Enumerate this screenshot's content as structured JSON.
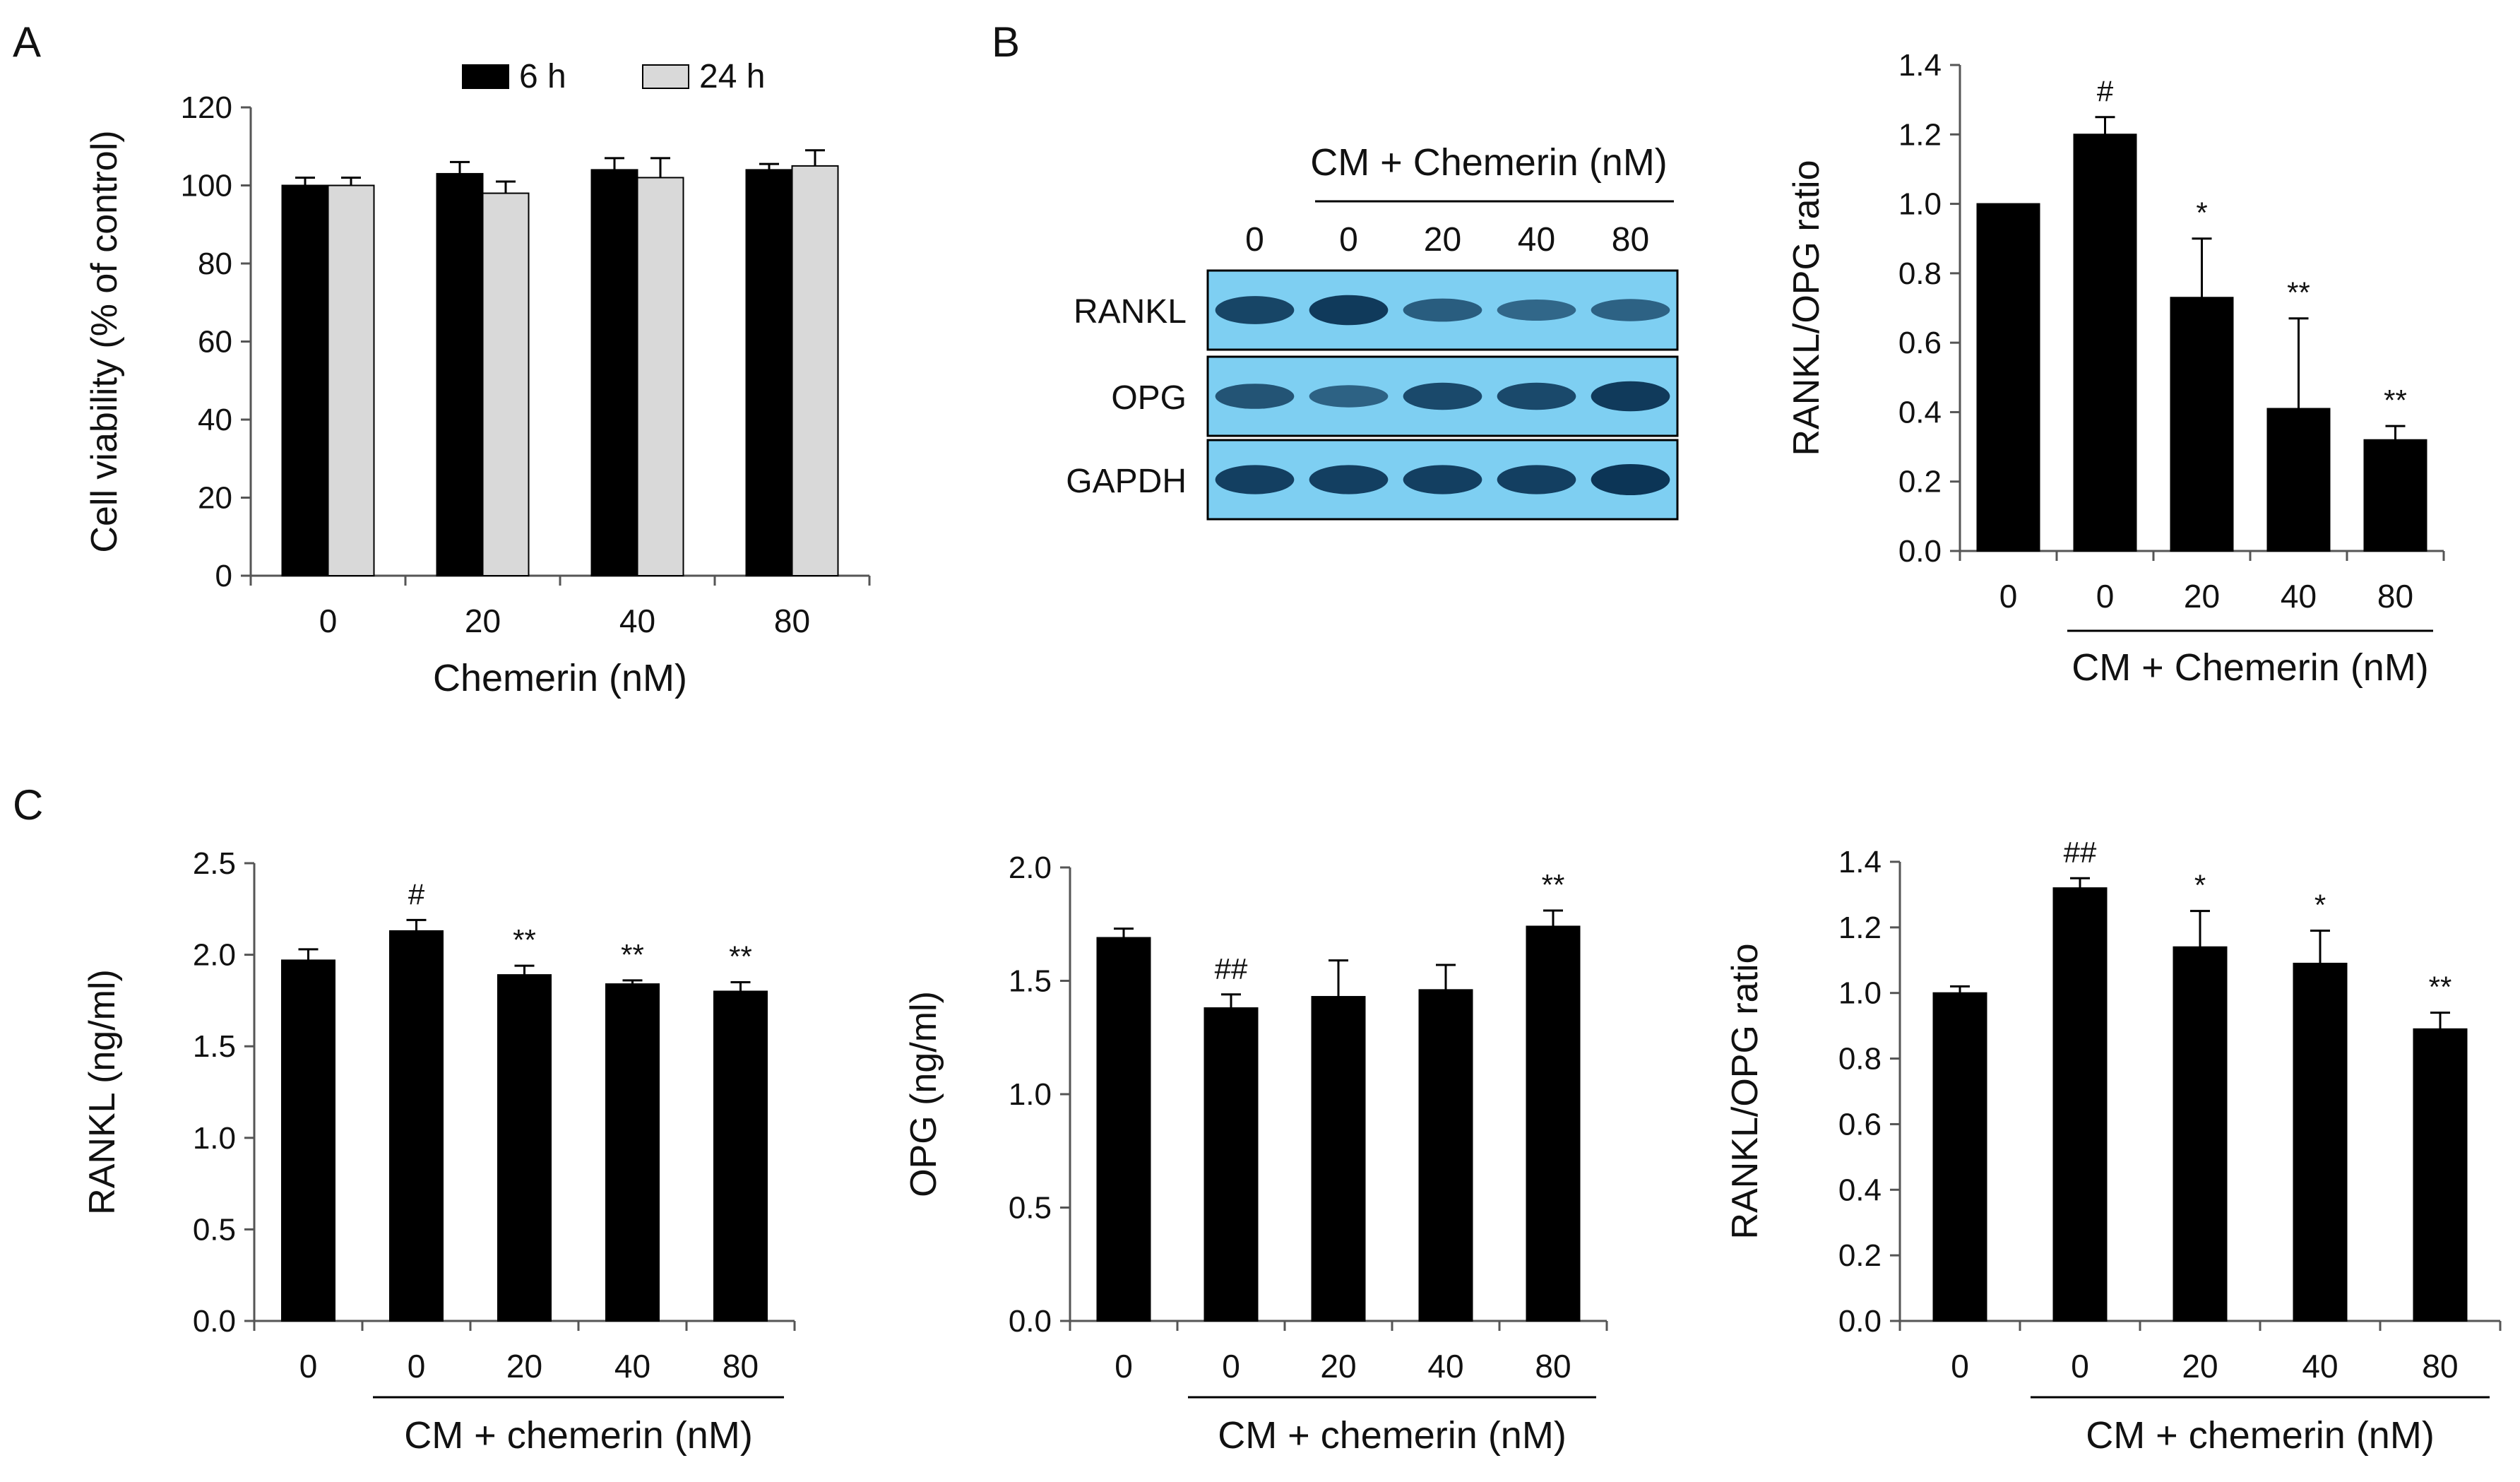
{
  "panel_letters": {
    "a": "A",
    "b": "B",
    "c": "C"
  },
  "colors": {
    "bar_dark": "#000000",
    "bar_light": "#d9d9d9",
    "blot_bg": "#7ecff2",
    "blot_band": "#0c3556"
  },
  "blot": {
    "header": "CM + Chemerin (nM)",
    "lanes": [
      "0",
      "0",
      "20",
      "40",
      "80"
    ],
    "rows": [
      {
        "label": "RANKL",
        "intensity": [
          0.85,
          0.95,
          0.6,
          0.5,
          0.55
        ]
      },
      {
        "label": "OPG",
        "intensity": [
          0.7,
          0.55,
          0.8,
          0.8,
          0.95
        ]
      },
      {
        "label": "GAPDH",
        "intensity": [
          0.9,
          0.9,
          0.9,
          0.9,
          1.0
        ]
      }
    ]
  },
  "chart_data": [
    {
      "id": "A",
      "type": "bar",
      "ylabel": "Cell viability (% of control)",
      "xlabel": "Chemerin (nM)",
      "categories": [
        "0",
        "20",
        "40",
        "80"
      ],
      "ylim": [
        0,
        120
      ],
      "yticks": [
        "0",
        "20",
        "40",
        "60",
        "80",
        "100",
        "120"
      ],
      "legend": "top",
      "series": [
        {
          "name": "6 h",
          "color": "#000000",
          "values": [
            100,
            103,
            104,
            104
          ],
          "errors": [
            2,
            3,
            3,
            1.5
          ]
        },
        {
          "name": "24 h",
          "color": "#d9d9d9",
          "values": [
            100,
            98,
            102,
            105
          ],
          "errors": [
            2,
            3,
            5,
            4
          ]
        }
      ],
      "annotations": [
        "",
        "",
        "",
        ""
      ],
      "bracket_label": "",
      "bracket_from": 0
    },
    {
      "id": "B",
      "type": "bar",
      "ylabel": "RANKL/OPG ratio",
      "xlabel": "",
      "categories": [
        "0",
        "0",
        "20",
        "40",
        "80"
      ],
      "ylim": [
        0,
        1.4
      ],
      "yticks": [
        "0.0",
        "0.2",
        "0.4",
        "0.6",
        "0.8",
        "1.0",
        "1.2",
        "1.4"
      ],
      "series": [
        {
          "color": "#000000",
          "values": [
            1.0,
            1.2,
            0.73,
            0.41,
            0.32
          ],
          "errors": [
            0,
            0.05,
            0.17,
            0.26,
            0.04
          ]
        }
      ],
      "annotations": [
        "",
        "#",
        "*",
        "**",
        "**"
      ],
      "bracket_label": "CM + Chemerin (nM)",
      "bracket_from": 1
    },
    {
      "id": "C1",
      "type": "bar",
      "ylabel": "RANKL (ng/ml)",
      "xlabel": "",
      "categories": [
        "0",
        "0",
        "20",
        "40",
        "80"
      ],
      "ylim": [
        0,
        2.5
      ],
      "yticks": [
        "0.0",
        "0.5",
        "1.0",
        "1.5",
        "2.0",
        "2.5"
      ],
      "series": [
        {
          "color": "#000000",
          "values": [
            1.97,
            2.13,
            1.89,
            1.84,
            1.8
          ],
          "errors": [
            0.06,
            0.06,
            0.05,
            0.02,
            0.05
          ]
        }
      ],
      "annotations": [
        "",
        "#",
        "**",
        "**",
        "**"
      ],
      "bracket_label": "CM + chemerin (nM)",
      "bracket_from": 1
    },
    {
      "id": "C2",
      "type": "bar",
      "ylabel": "OPG (ng/ml)",
      "xlabel": "",
      "categories": [
        "0",
        "0",
        "20",
        "40",
        "80"
      ],
      "ylim": [
        0,
        2.0
      ],
      "yticks": [
        "0.0",
        "0.5",
        "1.0",
        "1.5",
        "2.0"
      ],
      "series": [
        {
          "color": "#000000",
          "values": [
            1.69,
            1.38,
            1.43,
            1.46,
            1.74
          ],
          "errors": [
            0.04,
            0.06,
            0.16,
            0.11,
            0.07
          ]
        }
      ],
      "annotations": [
        "",
        "##",
        "",
        "",
        "**"
      ],
      "bracket_label": "CM + chemerin (nM)",
      "bracket_from": 1
    },
    {
      "id": "C3",
      "type": "bar",
      "ylabel": "RANKL/OPG ratio",
      "xlabel": "",
      "categories": [
        "0",
        "0",
        "20",
        "40",
        "80"
      ],
      "ylim": [
        0,
        1.4
      ],
      "yticks": [
        "0.0",
        "0.2",
        "0.4",
        "0.6",
        "0.8",
        "1.0",
        "1.2",
        "1.4"
      ],
      "series": [
        {
          "color": "#000000",
          "values": [
            1.0,
            1.32,
            1.14,
            1.09,
            0.89
          ],
          "errors": [
            0.02,
            0.03,
            0.11,
            0.1,
            0.05
          ]
        }
      ],
      "annotations": [
        "",
        "##",
        "*",
        "*",
        "**"
      ],
      "bracket_label": "CM + chemerin (nM)",
      "bracket_from": 1
    }
  ]
}
